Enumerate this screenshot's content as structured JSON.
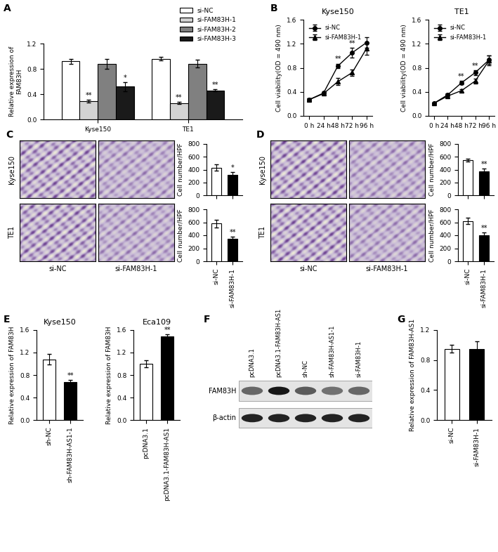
{
  "chart_data": [
    {
      "panel": "A",
      "type": "bar",
      "ylabel": "Relative expression of\nFAM83H",
      "categories": [
        "Kyse150",
        "TE1"
      ],
      "series": [
        {
          "name": "si-NC",
          "color": "#ffffff",
          "values": [
            0.92,
            0.96
          ],
          "errors": [
            0.04,
            0.03
          ],
          "significance": [
            null,
            null
          ]
        },
        {
          "name": "si-FAM83H-1",
          "color": "#d3d3d3",
          "values": [
            0.29,
            0.26
          ],
          "errors": [
            0.02,
            0.02
          ],
          "significance": [
            "**",
            "**"
          ]
        },
        {
          "name": "si-FAM83H-2",
          "color": "#808080",
          "values": [
            0.88,
            0.88
          ],
          "errors": [
            0.08,
            0.06
          ],
          "significance": [
            null,
            null
          ]
        },
        {
          "name": "si-FAM83H-3",
          "color": "#1a1a1a",
          "values": [
            0.52,
            0.46
          ],
          "errors": [
            0.07,
            0.02
          ],
          "significance": [
            "*",
            "**"
          ]
        }
      ],
      "ylim": [
        0,
        1.2
      ],
      "yticks": [
        {
          "value": 0,
          "label": "0.0"
        },
        0.4,
        0.8,
        1.2
      ],
      "legend": "upper right"
    },
    {
      "panel": "B",
      "type": "line",
      "title": "Kyse150",
      "ylabel": "Cell viability(OD = 490 nm)",
      "categories": [
        "0 h",
        "24 h",
        "48 h",
        "72 h",
        "96 h"
      ],
      "series": [
        {
          "name": "si-NC",
          "color": "#000000",
          "marker": "circle",
          "values": [
            0.27,
            0.38,
            0.83,
            1.05,
            1.22
          ],
          "errors": [
            0.02,
            0.02,
            0.04,
            0.08,
            0.09
          ]
        },
        {
          "name": "si-FAM83H-1",
          "color": "#000000",
          "marker": "triangle",
          "values": [
            0.27,
            0.37,
            0.57,
            0.72,
            1.12
          ],
          "errors": [
            0.02,
            0.02,
            0.06,
            0.05,
            0.1
          ]
        }
      ],
      "significance": [
        null,
        null,
        "**",
        "**",
        null
      ],
      "ylim": [
        0,
        1.6
      ],
      "yticks": [
        {
          "value": 0,
          "label": "0.0"
        },
        0.4,
        0.8,
        1.2,
        1.6
      ],
      "legend": "upper left"
    },
    {
      "type": "line",
      "title": "TE1",
      "ylabel": "Cell viability(OD = 490 nm)",
      "categories": [
        "0 h",
        "24 h",
        "48 h",
        "72 h",
        "96 h"
      ],
      "series": [
        {
          "name": "si-NC",
          "color": "#000000",
          "marker": "circle",
          "values": [
            0.21,
            0.35,
            0.55,
            0.72,
            0.93
          ],
          "errors": [
            0.01,
            0.02,
            0.03,
            0.04,
            0.07
          ]
        },
        {
          "name": "si-FAM83H-1",
          "color": "#000000",
          "marker": "triangle",
          "values": [
            0.21,
            0.33,
            0.42,
            0.58,
            0.92
          ],
          "errors": [
            0.01,
            0.02,
            0.02,
            0.04,
            0.08
          ]
        }
      ],
      "significance": [
        null,
        null,
        "**",
        "**",
        null
      ],
      "ylim": [
        0,
        1.6
      ],
      "yticks": [
        {
          "value": 0,
          "label": "0.0"
        },
        0.4,
        0.8,
        1.2,
        1.6
      ],
      "legend": "upper left"
    },
    {
      "type": "bar",
      "ylabel": "Cell number/HPF",
      "categories": [
        "si-NC",
        "si-FAM83H-1"
      ],
      "values": [
        430,
        320
      ],
      "errors": [
        50,
        40
      ],
      "colors": [
        "#ffffff",
        "#000000"
      ],
      "significance": [
        null,
        "*"
      ],
      "ylim": [
        0,
        800
      ],
      "yticks": [
        0,
        200,
        400,
        600,
        800
      ],
      "tick_labels": "y"
    },
    {
      "type": "bar",
      "ylabel": "Cell number/HPF",
      "categories": [
        "si-NC",
        "si-FAM83H-1"
      ],
      "values": [
        580,
        345
      ],
      "errors": [
        60,
        35
      ],
      "colors": [
        "#ffffff",
        "#000000"
      ],
      "significance": [
        null,
        "**"
      ],
      "ylim": [
        0,
        800
      ],
      "yticks": [
        0,
        200,
        400,
        600,
        800
      ]
    },
    {
      "type": "bar",
      "ylabel": "Cell number/HPF",
      "categories": [
        "si-NC",
        "si-FAM83H-1"
      ],
      "values": [
        550,
        375
      ],
      "errors": [
        25,
        45
      ],
      "colors": [
        "#ffffff",
        "#000000"
      ],
      "significance": [
        null,
        "**"
      ],
      "ylim": [
        0,
        800
      ],
      "yticks": [
        0,
        200,
        400,
        600,
        800
      ],
      "tick_labels": "y"
    },
    {
      "type": "bar",
      "ylabel": "Cell number/HPF",
      "categories": [
        "si-NC",
        "si-FAM83H-1"
      ],
      "values": [
        620,
        405
      ],
      "errors": [
        50,
        40
      ],
      "colors": [
        "#ffffff",
        "#000000"
      ],
      "significance": [
        null,
        "**"
      ],
      "ylim": [
        0,
        800
      ],
      "yticks": [
        0,
        200,
        400,
        600,
        800
      ]
    },
    {
      "panel": "E",
      "type": "bar",
      "title": "Kyse150",
      "ylabel": "Relative expression of FAM83H",
      "categories": [
        "sh-NC",
        "sh-FAM83H-AS1-1"
      ],
      "values": [
        1.08,
        0.67
      ],
      "errors": [
        0.09,
        0.04
      ],
      "colors": [
        "#ffffff",
        "#000000"
      ],
      "significance": [
        null,
        "**"
      ],
      "ylim": [
        0,
        1.6
      ],
      "yticks": [
        {
          "value": 0,
          "label": "0.0"
        },
        0.4,
        0.8,
        1.2,
        1.6
      ]
    },
    {
      "type": "bar",
      "title": "Eca109",
      "ylabel": "Relative expression of FAM83H",
      "categories": [
        "pcDNA3.1",
        "pcDNA3.1-FAM83H-AS1"
      ],
      "values": [
        1.0,
        1.49
      ],
      "errors": [
        0.06,
        0.03
      ],
      "colors": [
        "#ffffff",
        "#000000"
      ],
      "significance": [
        null,
        "**"
      ],
      "ylim": [
        0,
        1.6
      ],
      "yticks": [
        {
          "value": 0,
          "label": "0.0"
        },
        0.4,
        0.8,
        1.2,
        1.6
      ]
    },
    {
      "panel": "G",
      "type": "bar",
      "ylabel": "Relative expression of FAM83H-AS1",
      "categories": [
        "si-NC",
        "si-FAM83H-1"
      ],
      "values": [
        0.95,
        0.95
      ],
      "errors": [
        0.05,
        0.1
      ],
      "colors": [
        "#ffffff",
        "#000000"
      ],
      "significance": [
        null,
        null
      ],
      "ylim": [
        0,
        1.2
      ],
      "yticks": [
        {
          "value": 0,
          "label": "0.0"
        },
        0.4,
        0.8,
        1.2
      ]
    }
  ],
  "micrographs": [
    {
      "panel": "C",
      "rows": [
        "Kyse150",
        "TE1"
      ],
      "columns": [
        "si-NC",
        "si-FAM83H-1"
      ]
    },
    {
      "panel": "D",
      "rows": [
        "Kyse150",
        "TE1"
      ],
      "columns": [
        "si-NC",
        "si-FAM83H-1"
      ]
    }
  ],
  "western_blot": {
    "panel": "F",
    "lanes": [
      "pcDNA3.1",
      "pcDNA3.1-FAM83H-AS1",
      "sh-NC",
      "sh-FAM83H-AS1-1",
      "si-FAM83H-1"
    ],
    "rows": [
      "FAM83H",
      "β-actin"
    ]
  }
}
